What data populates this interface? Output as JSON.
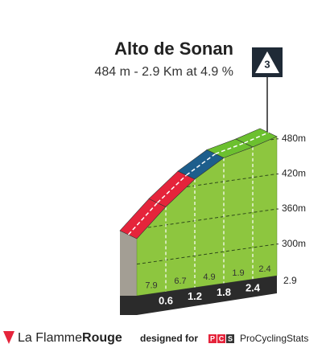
{
  "chart_data": {
    "type": "climb-profile",
    "title": "Alto de Sonan",
    "subtitle": "484 m - 2.9 Km at 4.9 %",
    "category": "3",
    "summit_altitude": 484,
    "distances": [
      0.6,
      1.2,
      1.8,
      2.4,
      2.9
    ],
    "gradients": [
      7.9,
      6.7,
      4.9,
      1.9,
      2.4
    ],
    "colors": [
      "#e5243b",
      "#e5243b",
      "#1d5e8c",
      "#6cc02f",
      "#6cc02f"
    ],
    "face_color": "#8dc63f",
    "xlim": [
      0,
      2.9
    ],
    "yticks": [
      {
        "value": 300,
        "label": "300m"
      },
      {
        "value": 360,
        "label": "360m"
      },
      {
        "value": 420,
        "label": "420m"
      },
      {
        "value": 480,
        "label": "480m"
      }
    ]
  },
  "footer": {
    "brand": "La Flamme",
    "brand_bold": "Rouge",
    "designed_for": "designed for",
    "pcs_letters": [
      "P",
      "C",
      "S"
    ],
    "pcs_name": "ProCyclingStats"
  }
}
